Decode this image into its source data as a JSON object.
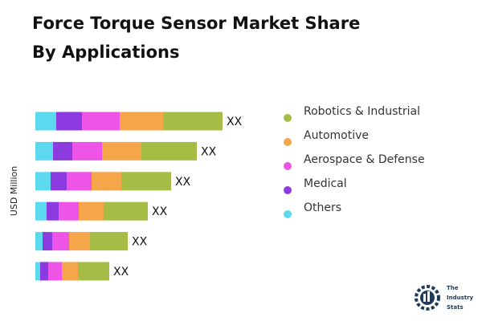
{
  "chart_data": {
    "type": "stacked-bar-horizontal",
    "title": "Force Torque Sensor Market Share By Applications",
    "y_label": "USD Million",
    "categories": [
      null,
      null,
      null,
      null,
      null,
      null
    ],
    "bar_labels": [
      "XX",
      "XX",
      "XX",
      "XX",
      "XX",
      "XX"
    ],
    "series": [
      {
        "name": "Robotics & Industrial",
        "color": "#a5bd45",
        "values": [
          74,
          69,
          62,
          55,
          47,
          39
        ]
      },
      {
        "name": "Automotive",
        "color": "#f5a54a",
        "values": [
          54,
          49,
          37,
          31,
          26,
          20
        ]
      },
      {
        "name": "Aerospace & Defense",
        "color": "#ee55e6",
        "values": [
          47,
          37,
          31,
          25,
          21,
          17
        ]
      },
      {
        "name": "Medical",
        "color": "#8b3be0",
        "values": [
          32,
          24,
          20,
          15,
          12,
          10
        ]
      },
      {
        "name": "Others",
        "color": "#5cd8ef",
        "values": [
          26,
          22,
          19,
          14,
          9,
          6
        ]
      }
    ],
    "logo": [
      "The",
      "Industry",
      "Stats"
    ]
  }
}
